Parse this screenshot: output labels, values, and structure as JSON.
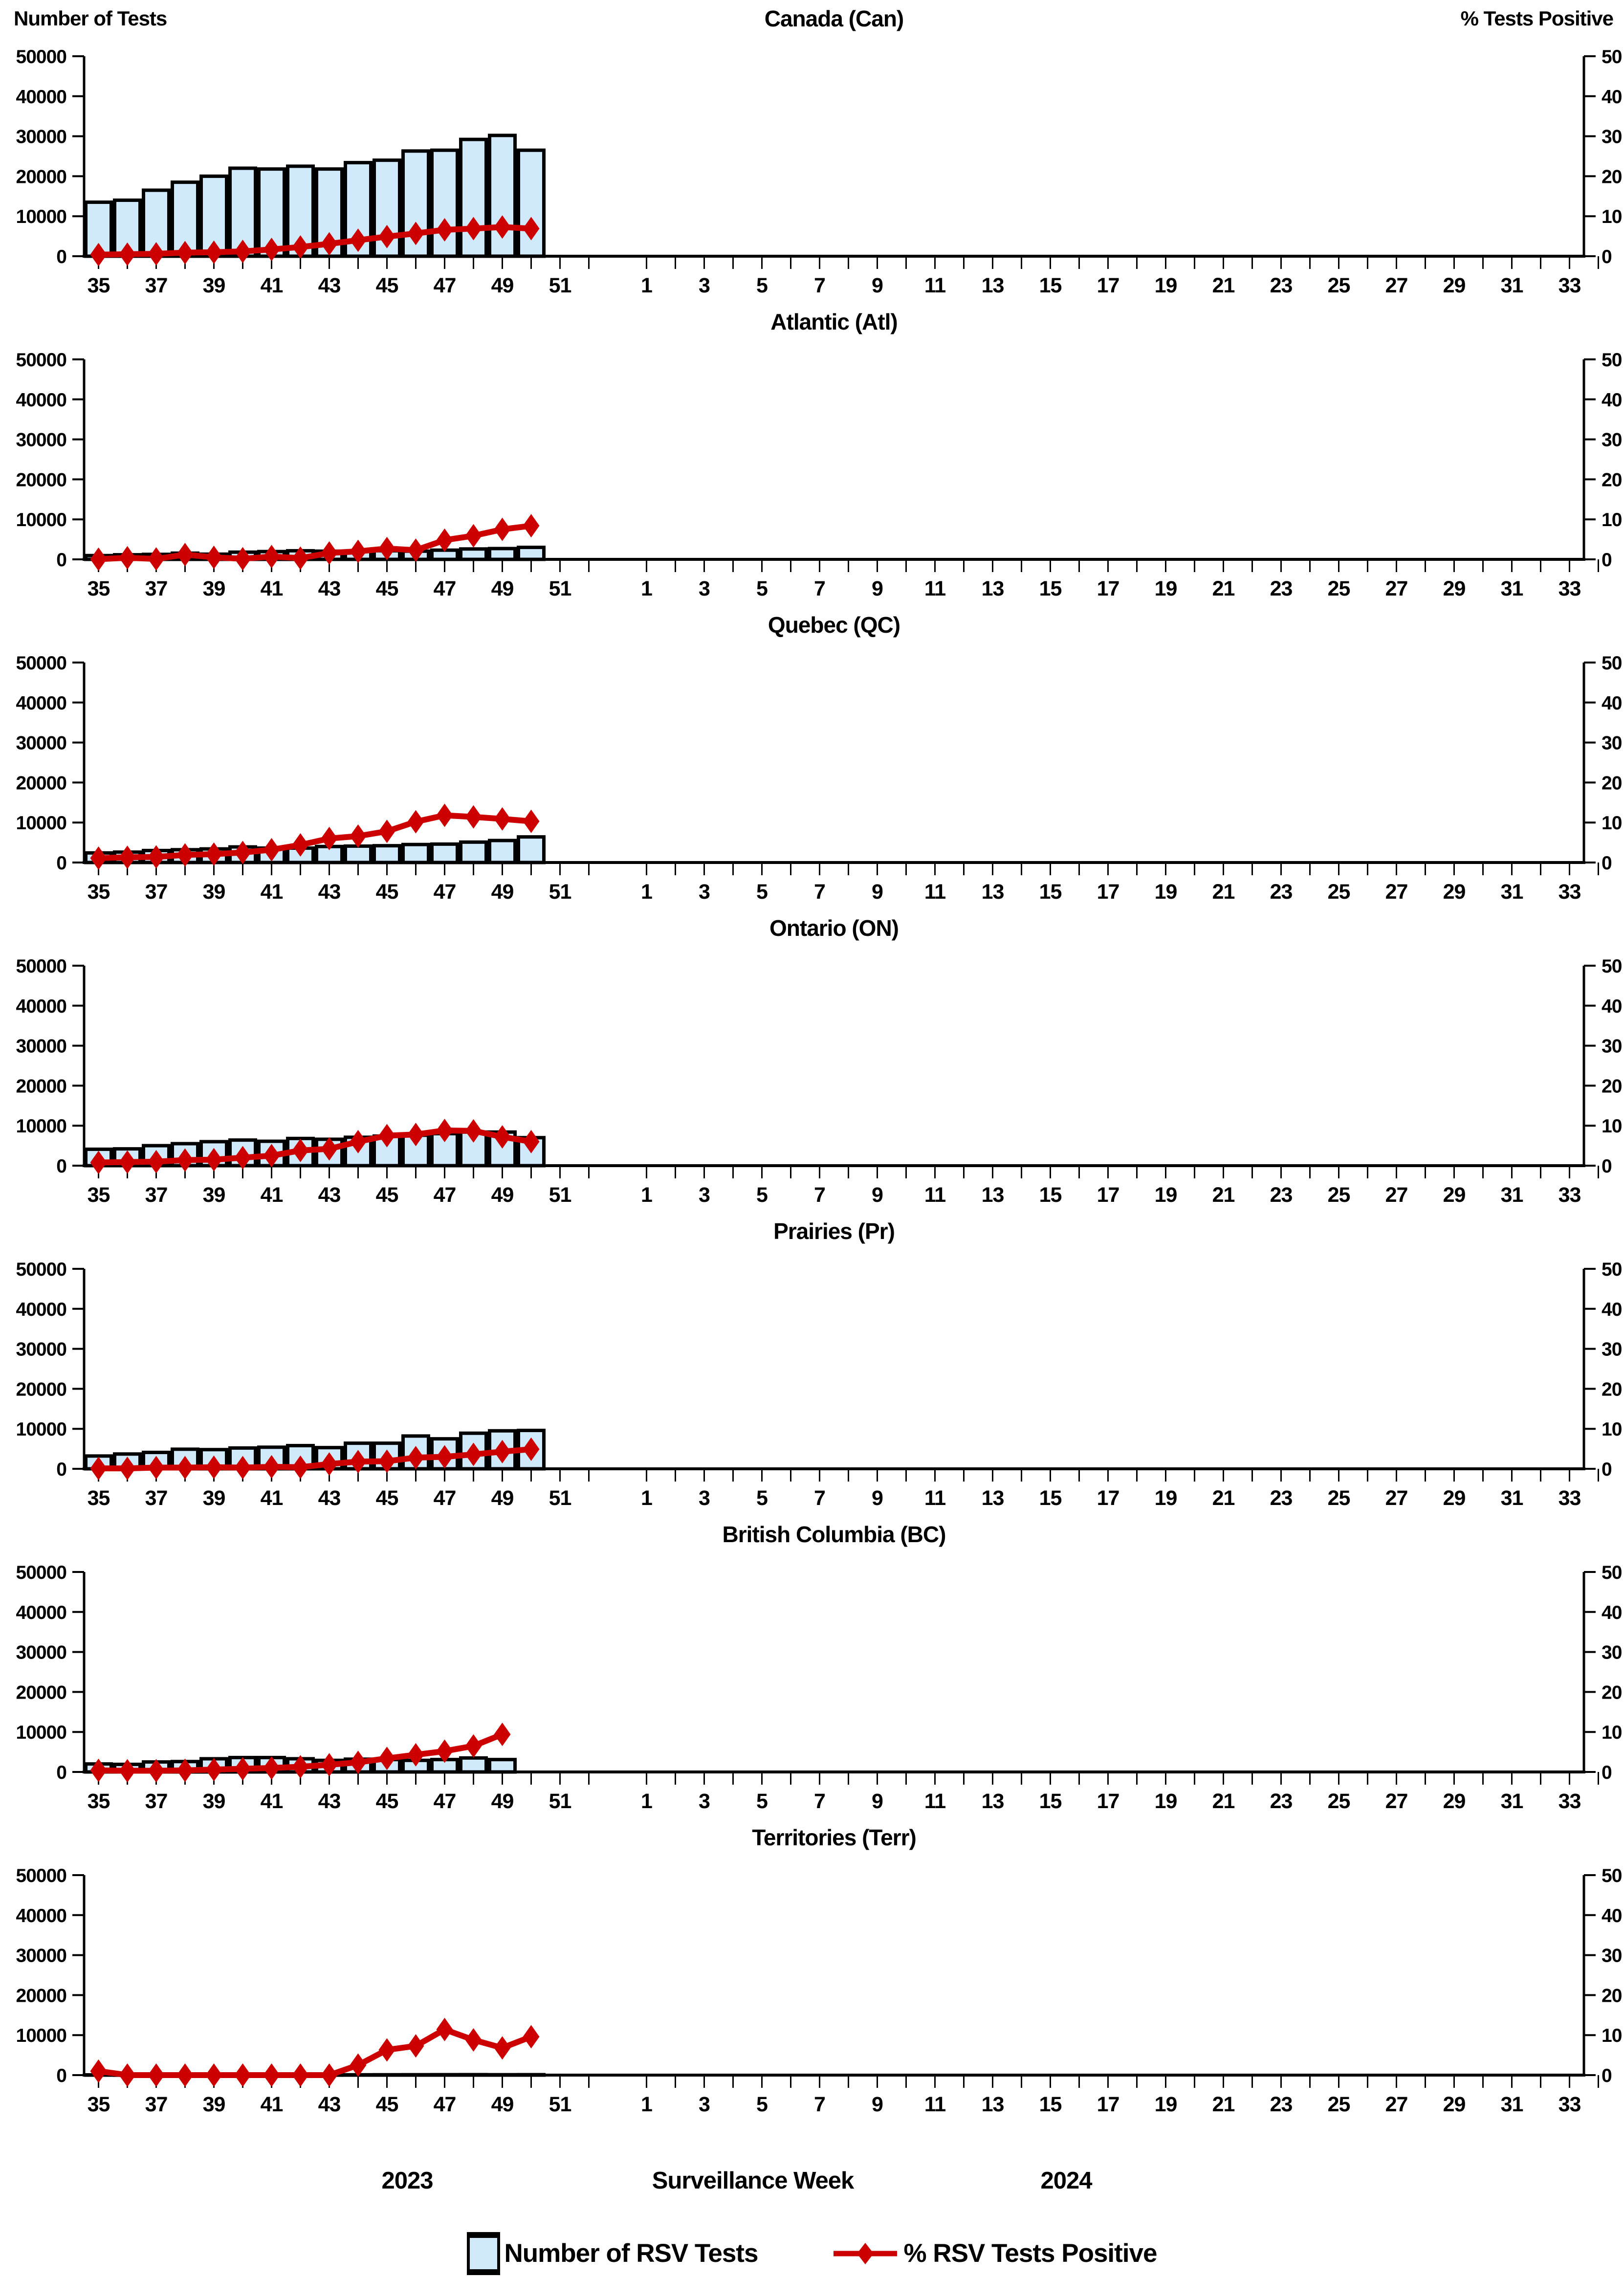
{
  "header": {
    "left_axis_title": "Number of Tests",
    "right_axis_title": "% Tests Positive"
  },
  "footer": {
    "year_left": "2023",
    "xlabel": "Surveillance Week",
    "year_right": "2024"
  },
  "legend": [
    {
      "swatch": "bar-swatch",
      "label": "Number of RSV Tests"
    },
    {
      "swatch": "line-diamond-swatch",
      "label": "% RSV Tests Positive"
    }
  ],
  "colors": {
    "bar_fill": "#D0E9FB",
    "bar_stroke": "#000000",
    "line": "#CC0000",
    "axis": "#000000",
    "background": "#FFFFFF"
  },
  "axes": {
    "y_left": {
      "min": 0,
      "max": 50000,
      "ticks": [
        0,
        10000,
        20000,
        30000,
        40000,
        50000
      ],
      "labels": [
        "0",
        "10000",
        "20000",
        "30000",
        "40000",
        "50000"
      ]
    },
    "y_right": {
      "min": 0,
      "max": 50,
      "ticks": [
        0,
        10,
        20,
        30,
        40,
        50
      ],
      "labels": [
        "0",
        "10",
        "20",
        "30",
        "40",
        "50"
      ]
    },
    "x": {
      "week_range_2023": [
        35,
        52
      ],
      "week_range_2024": [
        1,
        34
      ],
      "labels": [
        35,
        37,
        39,
        41,
        43,
        45,
        47,
        49,
        51,
        1,
        3,
        5,
        7,
        9,
        11,
        13,
        15,
        17,
        19,
        21,
        23,
        25,
        27,
        29,
        31,
        33
      ]
    }
  },
  "chart_data": [
    {
      "id": "can",
      "region": "Canada (Can)",
      "type": "bar+line",
      "weeks": [
        35,
        36,
        37,
        38,
        39,
        40,
        41,
        42,
        43,
        44,
        45,
        46,
        47,
        48,
        49,
        50
      ],
      "tests": [
        13500,
        14000,
        16500,
        18500,
        20000,
        22000,
        21800,
        22500,
        21800,
        23400,
        24000,
        26300,
        26500,
        29200,
        30200,
        26500
      ],
      "pct_positive": [
        0.4,
        0.5,
        0.6,
        0.9,
        1.0,
        1.2,
        1.7,
        2.3,
        3.1,
        4.0,
        4.9,
        5.7,
        6.6,
        6.9,
        7.3,
        6.9
      ]
    },
    {
      "id": "atl",
      "region": "Atlantic (Atl)",
      "type": "bar+line",
      "weeks": [
        35,
        36,
        37,
        38,
        39,
        40,
        41,
        42,
        43,
        44,
        45,
        46,
        47,
        48,
        49,
        50
      ],
      "tests": [
        950,
        1150,
        1250,
        1550,
        1300,
        1800,
        1950,
        2150,
        2050,
        1950,
        2150,
        2050,
        2300,
        2600,
        2700,
        3000
      ],
      "pct_positive": [
        0.05,
        0.4,
        0.1,
        1.2,
        0.5,
        0.15,
        0.7,
        0.3,
        1.6,
        2.0,
        2.7,
        2.3,
        4.8,
        5.9,
        7.5,
        8.4
      ]
    },
    {
      "id": "qc",
      "region": "Quebec (QC)",
      "type": "bar+line",
      "weeks": [
        35,
        36,
        37,
        38,
        39,
        40,
        41,
        42,
        43,
        44,
        45,
        46,
        47,
        48,
        49,
        50
      ],
      "tests": [
        2400,
        2600,
        3000,
        3200,
        3400,
        3900,
        3600,
        3600,
        4000,
        4100,
        4200,
        4500,
        4600,
        5100,
        5500,
        6400
      ],
      "pct_positive": [
        1.1,
        1.3,
        1.4,
        1.9,
        2.1,
        2.5,
        3.2,
        4.4,
        6.0,
        6.6,
        7.8,
        10.2,
        11.8,
        11.4,
        10.9,
        10.3
      ]
    },
    {
      "id": "on",
      "region": "Ontario (ON)",
      "type": "bar+line",
      "weeks": [
        35,
        36,
        37,
        38,
        39,
        40,
        41,
        42,
        43,
        44,
        45,
        46,
        47,
        48,
        49,
        50
      ],
      "tests": [
        4100,
        4200,
        5000,
        5500,
        6000,
        6400,
        6100,
        6800,
        6600,
        7100,
        7400,
        7600,
        8000,
        8400,
        8400,
        7000
      ],
      "pct_positive": [
        0.8,
        0.9,
        1.0,
        1.4,
        1.5,
        2.0,
        2.5,
        3.8,
        4.2,
        6.0,
        7.5,
        7.8,
        8.8,
        8.7,
        7.2,
        6.0
      ]
    },
    {
      "id": "pr",
      "region": "Prairies (Pr)",
      "type": "bar+line",
      "weeks": [
        35,
        36,
        37,
        38,
        39,
        40,
        41,
        42,
        43,
        44,
        45,
        46,
        47,
        48,
        49,
        50
      ],
      "tests": [
        3200,
        3700,
        4100,
        4900,
        4800,
        5200,
        5400,
        5800,
        5300,
        6400,
        6400,
        8200,
        7500,
        8900,
        9500,
        9600
      ],
      "pct_positive": [
        0.1,
        0.1,
        0.3,
        0.3,
        0.4,
        0.3,
        0.5,
        0.4,
        1.2,
        1.8,
        1.9,
        2.8,
        3.0,
        3.6,
        4.3,
        4.9
      ]
    },
    {
      "id": "bc",
      "region": "British Columbia (BC)",
      "type": "bar+line",
      "weeks": [
        35,
        36,
        37,
        38,
        39,
        40,
        41,
        42,
        43,
        44,
        45,
        46,
        47,
        48,
        49
      ],
      "tests": [
        2000,
        1900,
        2500,
        2600,
        3300,
        3600,
        3600,
        3300,
        2900,
        3200,
        3100,
        2900,
        3100,
        3500,
        3100
      ],
      "pct_positive": [
        0.4,
        0.3,
        0.3,
        0.4,
        0.6,
        0.8,
        1.0,
        1.3,
        1.8,
        2.4,
        3.4,
        4.3,
        5.2,
        6.5,
        9.4
      ]
    },
    {
      "id": "terr",
      "region": "Territories (Terr)",
      "type": "bar+line",
      "weeks": [
        35,
        36,
        37,
        38,
        39,
        40,
        41,
        42,
        43,
        44,
        45,
        46,
        47,
        48,
        49,
        50
      ],
      "tests": [
        60,
        40,
        50,
        60,
        50,
        60,
        70,
        60,
        50,
        80,
        90,
        100,
        110,
        120,
        100,
        110
      ],
      "pct_positive": [
        1.0,
        0,
        0,
        0,
        0,
        0,
        0,
        0,
        0,
        2.5,
        6.3,
        7.3,
        11.4,
        8.8,
        6.8,
        9.6
      ]
    }
  ]
}
